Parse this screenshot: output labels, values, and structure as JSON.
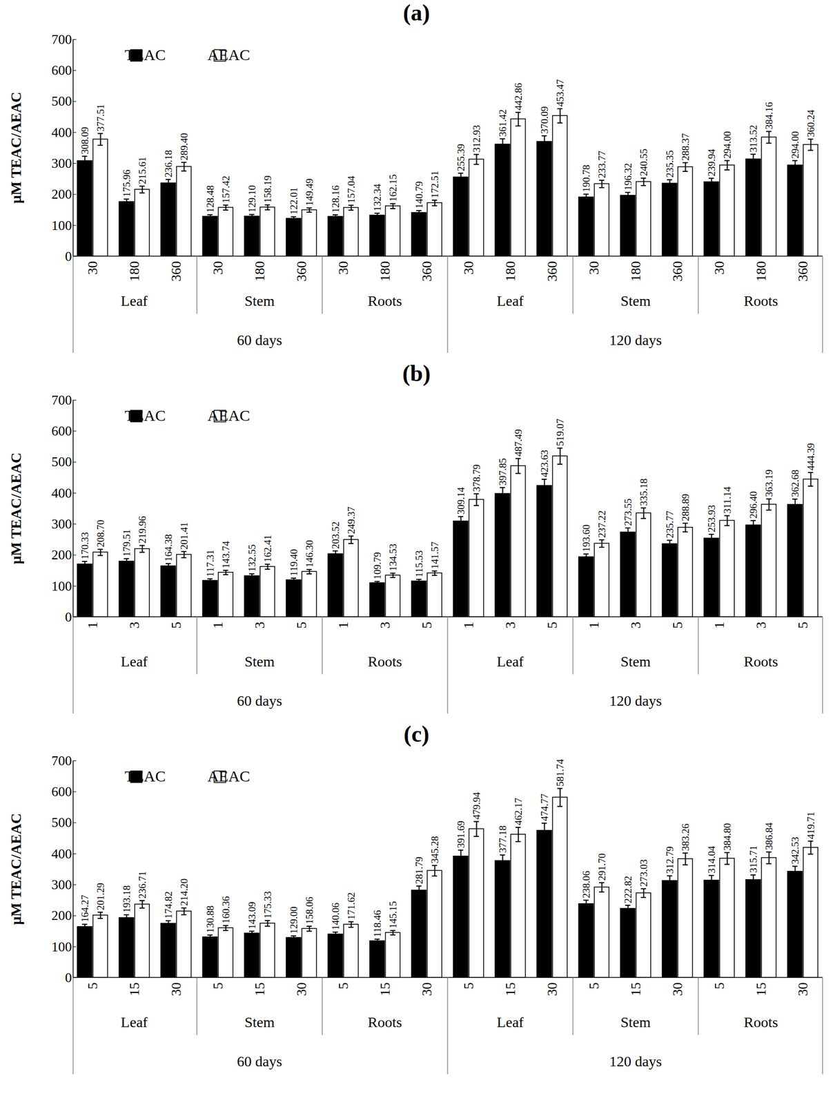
{
  "chart_data": [
    {
      "type": "bar",
      "title": "(a)",
      "y_label": "μM TEAC/AEAC",
      "categories": [
        "30",
        "180",
        "360",
        "30",
        "180",
        "360",
        "30",
        "180",
        "360",
        "30",
        "180",
        "360",
        "30",
        "180",
        "360",
        "30",
        "180",
        "360"
      ],
      "organ": [
        "Leaf",
        "Leaf",
        "Leaf",
        "Stem",
        "Stem",
        "Stem",
        "Roots",
        "Roots",
        "Roots",
        "Leaf",
        "Leaf",
        "Leaf",
        "Stem",
        "Stem",
        "Stem",
        "Roots",
        "Roots",
        "Roots"
      ],
      "age": [
        "60 days",
        "60 days",
        "60 days",
        "60 days",
        "60 days",
        "60 days",
        "60 days",
        "60 days",
        "60 days",
        "120 days",
        "120 days",
        "120 days",
        "120 days",
        "120 days",
        "120 days",
        "120 days",
        "120 days",
        "120 days"
      ],
      "series": [
        {
          "name": "TEAC",
          "color": "#000000",
          "values": [
            308.09,
            175.96,
            236.18,
            128.48,
            129.1,
            122.01,
            128.16,
            132.34,
            140.79,
            255.39,
            361.42,
            370.09,
            190.78,
            196.32,
            235.35,
            239.94,
            313.52,
            294.0
          ],
          "value_labels": [
            "308.09",
            "175.96",
            "236.18",
            "128.48",
            "129.10",
            "122.01",
            "128.16",
            "132.34",
            "140.79",
            "255.39",
            "361.42",
            "370.09",
            "190.78",
            "196.32",
            "235.35",
            "239.94",
            "313.52",
            "294.00"
          ],
          "errors": [
            15,
            9,
            12,
            6,
            6,
            6,
            6,
            7,
            7,
            13,
            18,
            19,
            10,
            10,
            12,
            12,
            16,
            15
          ]
        },
        {
          "name": "AEAC",
          "color": "#ffffff",
          "values": [
            377.51,
            215.61,
            289.4,
            157.42,
            158.19,
            149.49,
            157.04,
            162.15,
            172.51,
            312.93,
            442.86,
            453.47,
            233.77,
            240.55,
            288.37,
            294.0,
            384.16,
            360.24
          ],
          "value_labels": [
            "377.51",
            "215.61",
            "289.40",
            "157.42",
            "158.19",
            "149.49",
            "157.04",
            "162.15",
            "172.51",
            "312.93",
            "442.86",
            "453.47",
            "233.77",
            "240.55",
            "288.37",
            "294.00",
            "384.16",
            "360.24"
          ],
          "errors": [
            19,
            11,
            14,
            8,
            8,
            7,
            8,
            8,
            9,
            16,
            22,
            23,
            12,
            12,
            14,
            15,
            19,
            18
          ]
        }
      ],
      "ylim": [
        0,
        700
      ],
      "yticks": [
        0,
        100,
        200,
        300,
        400,
        500,
        600,
        700
      ],
      "grid": false,
      "legend": "top-left",
      "data_labels": true
    },
    {
      "type": "bar",
      "title": "(b)",
      "y_label": "μM TEAC/AEAC",
      "categories": [
        "1",
        "3",
        "5",
        "1",
        "3",
        "5",
        "1",
        "3",
        "5",
        "1",
        "3",
        "5",
        "1",
        "3",
        "5",
        "1",
        "3",
        "5"
      ],
      "organ": [
        "Leaf",
        "Leaf",
        "Leaf",
        "Stem",
        "Stem",
        "Stem",
        "Roots",
        "Roots",
        "Roots",
        "Leaf",
        "Leaf",
        "Leaf",
        "Stem",
        "Stem",
        "Stem",
        "Roots",
        "Roots",
        "Roots"
      ],
      "age": [
        "60 days",
        "60 days",
        "60 days",
        "60 days",
        "60 days",
        "60 days",
        "60 days",
        "60 days",
        "60 days",
        "120 days",
        "120 days",
        "120 days",
        "120 days",
        "120 days",
        "120 days",
        "120 days",
        "120 days",
        "120 days"
      ],
      "series": [
        {
          "name": "TEAC",
          "color": "#000000",
          "values": [
            170.33,
            179.51,
            164.38,
            117.31,
            132.55,
            119.4,
            203.52,
            109.79,
            115.53,
            309.14,
            397.85,
            423.63,
            193.6,
            273.55,
            235.77,
            253.93,
            296.4,
            362.68
          ],
          "value_labels": [
            "170.33",
            "179.51",
            "164.38",
            "117.31",
            "132.55",
            "119.40",
            "203.52",
            "109.79",
            "115.53",
            "309.14",
            "397.85",
            "423.63",
            "193.60",
            "273.55",
            "235.77",
            "253.93",
            "296.40",
            "362.68"
          ],
          "errors": [
            9,
            9,
            8,
            6,
            7,
            6,
            10,
            5,
            6,
            15,
            20,
            21,
            10,
            14,
            12,
            13,
            15,
            18
          ]
        },
        {
          "name": "AEAC",
          "color": "#ffffff",
          "values": [
            208.7,
            219.96,
            201.41,
            143.74,
            162.41,
            146.3,
            249.37,
            134.53,
            141.57,
            378.79,
            487.49,
            519.07,
            237.22,
            335.18,
            288.89,
            311.14,
            363.19,
            444.39
          ],
          "value_labels": [
            "208.70",
            "219.96",
            "201.41",
            "143.74",
            "162.41",
            "146.30",
            "249.37",
            "134.53",
            "141.57",
            "378.79",
            "487.49",
            "519.07",
            "237.22",
            "335.18",
            "288.89",
            "311.14",
            "363.19",
            "444.39"
          ],
          "errors": [
            10,
            11,
            10,
            7,
            8,
            7,
            12,
            7,
            7,
            19,
            24,
            26,
            12,
            17,
            14,
            16,
            18,
            22
          ]
        }
      ],
      "ylim": [
        0,
        700
      ],
      "yticks": [
        0,
        100,
        200,
        300,
        400,
        500,
        600,
        700
      ],
      "grid": false,
      "legend": "top-left",
      "data_labels": true
    },
    {
      "type": "bar",
      "title": "(c)",
      "y_label": "μM TEAC/AEAC",
      "categories": [
        "5",
        "15",
        "30",
        "5",
        "15",
        "30",
        "5",
        "15",
        "30",
        "5",
        "15",
        "30",
        "5",
        "15",
        "30",
        "5",
        "15",
        "30"
      ],
      "organ": [
        "Leaf",
        "Leaf",
        "Leaf",
        "Stem",
        "Stem",
        "Stem",
        "Roots",
        "Roots",
        "Roots",
        "Leaf",
        "Leaf",
        "Leaf",
        "Stem",
        "Stem",
        "Stem",
        "Roots",
        "Roots",
        "Roots"
      ],
      "age": [
        "60 days",
        "60 days",
        "60 days",
        "60 days",
        "60 days",
        "60 days",
        "60 days",
        "60 days",
        "60 days",
        "120 days",
        "120 days",
        "120 days",
        "120 days",
        "120 days",
        "120 days",
        "120 days",
        "120 days",
        "120 days"
      ],
      "series": [
        {
          "name": "TEAC",
          "color": "#000000",
          "values": [
            164.27,
            193.18,
            174.82,
            130.88,
            143.09,
            129.0,
            140.06,
            118.46,
            281.79,
            391.69,
            377.18,
            474.77,
            238.06,
            222.82,
            312.79,
            314.04,
            315.71,
            342.53
          ],
          "value_labels": [
            "164.27",
            "193.18",
            "174.82",
            "130.88",
            "143.09",
            "129.00",
            "140.06",
            "118.46",
            "281.79",
            "391.69",
            "377.18",
            "474.77",
            "238.06",
            "222.82",
            "312.79",
            "314.04",
            "315.71",
            "342.53"
          ],
          "errors": [
            8,
            10,
            9,
            7,
            7,
            6,
            7,
            6,
            14,
            20,
            19,
            24,
            12,
            11,
            16,
            16,
            16,
            17
          ]
        },
        {
          "name": "AEAC",
          "color": "#ffffff",
          "values": [
            201.29,
            236.71,
            214.2,
            160.36,
            175.33,
            158.06,
            171.62,
            145.15,
            345.28,
            479.94,
            462.17,
            581.74,
            291.7,
            273.03,
            383.26,
            384.8,
            386.84,
            419.71
          ],
          "value_labels": [
            "201.29",
            "236.71",
            "214.20",
            "160.36",
            "175.33",
            "158.06",
            "171.62",
            "145.15",
            "345.28",
            "479.94",
            "462.17",
            "581.74",
            "291.70",
            "273.03",
            "383.26",
            "384.80",
            "386.84",
            "419.71"
          ],
          "errors": [
            10,
            12,
            11,
            8,
            9,
            8,
            9,
            7,
            17,
            24,
            23,
            29,
            15,
            14,
            19,
            19,
            19,
            21
          ]
        }
      ],
      "ylim": [
        0,
        700
      ],
      "yticks": [
        0,
        100,
        200,
        300,
        400,
        500,
        600,
        700
      ],
      "grid": false,
      "legend": "top-left",
      "data_labels": true
    }
  ]
}
